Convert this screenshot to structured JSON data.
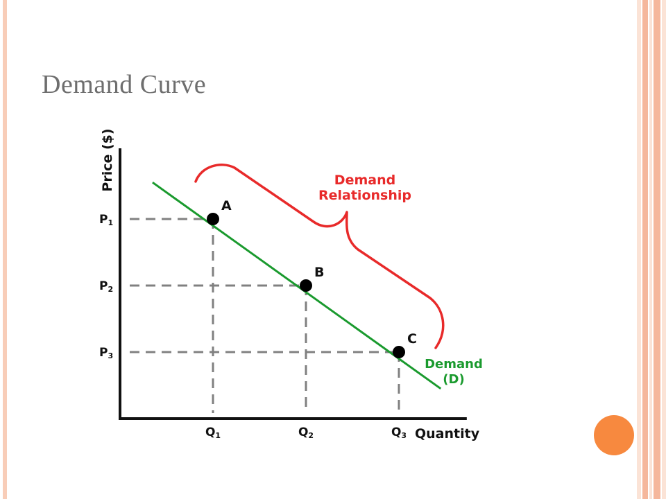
{
  "slide": {
    "title": "Demand Curve",
    "colors": {
      "title": "#6e6e6e",
      "frame": "#f8cdb8",
      "stripe_light": "#fbe3d6",
      "stripe_dark": "#f5b79c",
      "accent_circle": "#f7893f"
    }
  },
  "chart_data": {
    "type": "line",
    "ylabel": "Price ($)",
    "xlabel": "Quantity",
    "x_ticks": [
      "Q1",
      "Q2",
      "Q3"
    ],
    "y_ticks": [
      "P1",
      "P2",
      "P3"
    ],
    "series": [
      {
        "name": "Demand (D)",
        "name_lines": [
          "Demand",
          "(D)"
        ],
        "color": "#1a9a2e",
        "line_start": [
          0.35,
          3.55
        ],
        "line_end": [
          3.45,
          0.45
        ],
        "points": [
          {
            "label": "A",
            "x": 1,
            "y": 3
          },
          {
            "label": "B",
            "x": 2,
            "y": 2
          },
          {
            "label": "C",
            "x": 3,
            "y": 1
          }
        ]
      }
    ],
    "annotation": {
      "text_lines": [
        "Demand",
        "Relationship"
      ],
      "color": "#e82a2a"
    },
    "xlim": [
      0,
      4
    ],
    "ylim": [
      0,
      4
    ],
    "axis_color": "#111111",
    "guide_color": "#808080"
  }
}
